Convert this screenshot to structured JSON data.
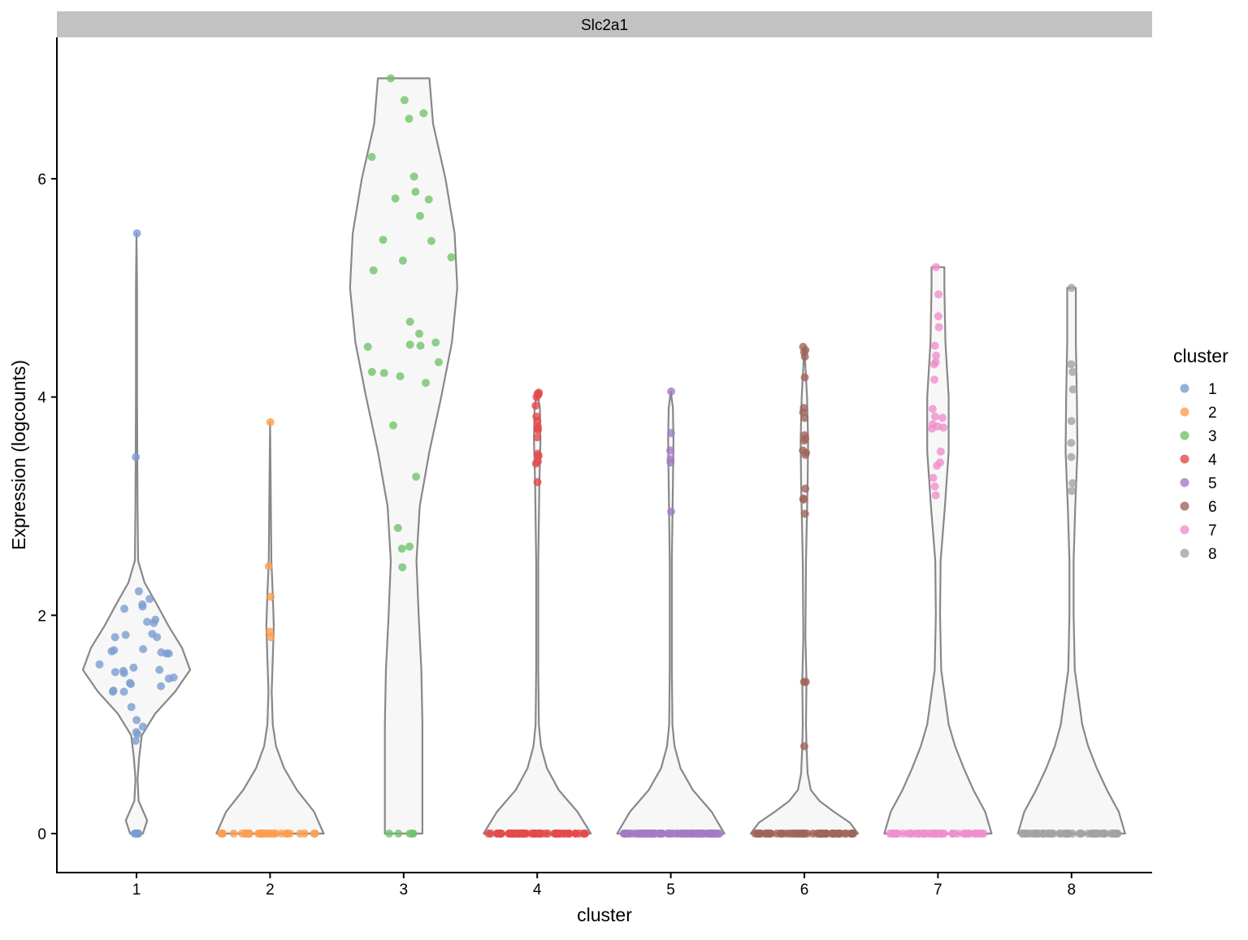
{
  "chart_data": {
    "type": "violin",
    "facet_title": "Slc2a1",
    "xlabel": "cluster",
    "ylabel": "Expression (logcounts)",
    "ylim": [
      -0.35,
      7.3
    ],
    "yticks": [
      0,
      2,
      4,
      6
    ],
    "categories": [
      "1",
      "2",
      "3",
      "4",
      "5",
      "6",
      "7",
      "8"
    ],
    "legend": {
      "title": "cluster",
      "position": "right",
      "entries": [
        "1",
        "2",
        "3",
        "4",
        "5",
        "6",
        "7",
        "8"
      ]
    },
    "colors": {
      "1": "#7b9dd0",
      "2": "#fd9e4f",
      "3": "#70c36b",
      "4": "#e34a4b",
      "5": "#a47bc4",
      "6": "#a0655a",
      "7": "#ef8fcd",
      "8": "#a3a3a3",
      "violin_fill": "#f7f7f7",
      "violin_stroke": "#888888",
      "strip": "#c2c2c2"
    },
    "series": [
      {
        "name": "1",
        "values": [
          5.5,
          3.45,
          2.22,
          2.15,
          2.1,
          2.08,
          2.06,
          1.96,
          1.94,
          1.93,
          1.83,
          1.82,
          1.8,
          1.8,
          1.69,
          1.68,
          1.67,
          1.66,
          1.65,
          1.65,
          1.55,
          1.52,
          1.5,
          1.49,
          1.48,
          1.47,
          1.43,
          1.42,
          1.38,
          1.37,
          1.35,
          1.31,
          1.3,
          1.3,
          1.16,
          1.04,
          0.98,
          0.93,
          0.91,
          0.85,
          0,
          0,
          0,
          0,
          0,
          0,
          0,
          0
        ],
        "violin_width": [
          [
            0,
            0.12
          ],
          [
            0.12,
            0.2
          ],
          [
            0.3,
            0.04
          ],
          [
            0.5,
            0.02
          ],
          [
            0.7,
            0.05
          ],
          [
            0.9,
            0.1
          ],
          [
            1.1,
            0.35
          ],
          [
            1.3,
            0.72
          ],
          [
            1.5,
            1.0
          ],
          [
            1.7,
            0.85
          ],
          [
            1.9,
            0.6
          ],
          [
            2.1,
            0.38
          ],
          [
            2.3,
            0.15
          ],
          [
            2.5,
            0.03
          ],
          [
            3.0,
            0.02
          ],
          [
            3.45,
            0.015
          ],
          [
            4.0,
            0.01
          ],
          [
            5.0,
            0.01
          ],
          [
            5.5,
            0.0
          ]
        ]
      },
      {
        "name": "2",
        "values": [
          3.77,
          2.45,
          2.17,
          1.85,
          1.8,
          0,
          0,
          0,
          0,
          0,
          0,
          0,
          0,
          0,
          0,
          0,
          0,
          0,
          0,
          0,
          0,
          0,
          0,
          0,
          0,
          0,
          0,
          0,
          0,
          0,
          0,
          0,
          0,
          0
        ],
        "violin_width": [
          [
            0,
            1.0
          ],
          [
            0.2,
            0.82
          ],
          [
            0.4,
            0.5
          ],
          [
            0.6,
            0.26
          ],
          [
            0.8,
            0.11
          ],
          [
            1.0,
            0.05
          ],
          [
            1.3,
            0.03
          ],
          [
            1.6,
            0.05
          ],
          [
            1.9,
            0.07
          ],
          [
            2.2,
            0.05
          ],
          [
            2.5,
            0.025
          ],
          [
            3.0,
            0.015
          ],
          [
            3.77,
            0.0
          ]
        ]
      },
      {
        "name": "3",
        "values": [
          6.92,
          6.72,
          6.6,
          6.55,
          6.2,
          6.02,
          5.88,
          5.82,
          5.81,
          5.66,
          5.44,
          5.43,
          5.28,
          5.25,
          5.16,
          4.69,
          4.58,
          4.5,
          4.48,
          4.47,
          4.46,
          4.32,
          4.23,
          4.22,
          4.19,
          4.13,
          3.74,
          3.27,
          2.8,
          2.63,
          2.61,
          2.44,
          0,
          0,
          0,
          0,
          0
        ],
        "violin_width": [
          [
            0,
            0.35
          ],
          [
            0.5,
            0.35
          ],
          [
            1.0,
            0.35
          ],
          [
            1.5,
            0.33
          ],
          [
            2.0,
            0.28
          ],
          [
            2.5,
            0.24
          ],
          [
            3.0,
            0.3
          ],
          [
            3.5,
            0.48
          ],
          [
            4.0,
            0.7
          ],
          [
            4.5,
            0.9
          ],
          [
            5.0,
            1.0
          ],
          [
            5.5,
            0.95
          ],
          [
            6.0,
            0.78
          ],
          [
            6.5,
            0.55
          ],
          [
            6.92,
            0.48
          ]
        ]
      },
      {
        "name": "4",
        "values": [
          4.04,
          4.03,
          4.02,
          4.0,
          3.92,
          3.82,
          3.78,
          3.73,
          3.71,
          3.7,
          3.63,
          3.48,
          3.46,
          3.41,
          3.39,
          3.22,
          0,
          0,
          0,
          0,
          0,
          0,
          0,
          0,
          0,
          0,
          0,
          0,
          0,
          0,
          0,
          0,
          0,
          0,
          0,
          0,
          0,
          0,
          0,
          0,
          0,
          0,
          0,
          0,
          0,
          0,
          0,
          0,
          0,
          0,
          0,
          0,
          0,
          0,
          0,
          0,
          0,
          0,
          0,
          0,
          0,
          0,
          0,
          0,
          0,
          0,
          0,
          0,
          0,
          0,
          0,
          0,
          0,
          0,
          0,
          0,
          0,
          0,
          0,
          0
        ],
        "violin_width": [
          [
            0,
            1.0
          ],
          [
            0.2,
            0.75
          ],
          [
            0.4,
            0.4
          ],
          [
            0.6,
            0.18
          ],
          [
            0.8,
            0.07
          ],
          [
            1.0,
            0.03
          ],
          [
            1.5,
            0.02
          ],
          [
            2.5,
            0.02
          ],
          [
            3.2,
            0.04
          ],
          [
            3.6,
            0.06
          ],
          [
            3.9,
            0.05
          ],
          [
            4.05,
            0.0
          ]
        ]
      },
      {
        "name": "5",
        "values": [
          4.05,
          3.67,
          3.51,
          3.43,
          3.4,
          2.95,
          0,
          0,
          0,
          0,
          0,
          0,
          0,
          0,
          0,
          0,
          0,
          0,
          0,
          0,
          0,
          0,
          0,
          0,
          0,
          0,
          0,
          0,
          0,
          0,
          0,
          0,
          0,
          0,
          0,
          0,
          0,
          0,
          0,
          0,
          0,
          0,
          0,
          0,
          0,
          0,
          0,
          0,
          0,
          0,
          0,
          0,
          0,
          0,
          0,
          0,
          0,
          0,
          0,
          0,
          0,
          0,
          0,
          0,
          0,
          0,
          0,
          0,
          0,
          0,
          0,
          0,
          0,
          0,
          0,
          0,
          0,
          0,
          0,
          0
        ],
        "violin_width": [
          [
            0,
            1.0
          ],
          [
            0.2,
            0.76
          ],
          [
            0.4,
            0.41
          ],
          [
            0.6,
            0.18
          ],
          [
            0.8,
            0.07
          ],
          [
            1.0,
            0.03
          ],
          [
            1.5,
            0.02
          ],
          [
            2.5,
            0.02
          ],
          [
            3.2,
            0.04
          ],
          [
            3.6,
            0.05
          ],
          [
            3.9,
            0.04
          ],
          [
            4.05,
            0.0
          ]
        ]
      },
      {
        "name": "6",
        "values": [
          4.46,
          4.43,
          4.41,
          4.37,
          4.18,
          3.9,
          3.86,
          3.81,
          3.65,
          3.62,
          3.6,
          3.51,
          3.49,
          3.47,
          3.16,
          3.07,
          3.06,
          2.93,
          1.39,
          1.39,
          0.8,
          0,
          0,
          0,
          0,
          0,
          0,
          0,
          0,
          0,
          0,
          0,
          0,
          0,
          0,
          0,
          0,
          0,
          0,
          0,
          0,
          0,
          0,
          0,
          0,
          0,
          0,
          0,
          0,
          0,
          0,
          0,
          0,
          0,
          0,
          0,
          0,
          0,
          0,
          0,
          0,
          0,
          0,
          0,
          0,
          0,
          0,
          0,
          0,
          0,
          0,
          0,
          0,
          0,
          0,
          0,
          0,
          0,
          0,
          0
        ],
        "violin_width": [
          [
            0,
            1.0
          ],
          [
            0.1,
            0.85
          ],
          [
            0.2,
            0.55
          ],
          [
            0.3,
            0.28
          ],
          [
            0.4,
            0.12
          ],
          [
            0.55,
            0.06
          ],
          [
            0.8,
            0.04
          ],
          [
            1.0,
            0.03
          ],
          [
            1.4,
            0.04
          ],
          [
            1.8,
            0.02
          ],
          [
            2.5,
            0.03
          ],
          [
            3.2,
            0.06
          ],
          [
            3.6,
            0.07
          ],
          [
            4.0,
            0.05
          ],
          [
            4.46,
            0.0
          ]
        ]
      },
      {
        "name": "7",
        "values": [
          5.19,
          4.94,
          4.74,
          4.64,
          4.47,
          4.38,
          4.32,
          4.3,
          4.16,
          3.89,
          3.82,
          3.81,
          3.75,
          3.73,
          3.72,
          3.71,
          3.5,
          3.4,
          3.37,
          3.26,
          3.18,
          3.1,
          0,
          0,
          0,
          0,
          0,
          0,
          0,
          0,
          0,
          0,
          0,
          0,
          0,
          0,
          0,
          0,
          0,
          0,
          0,
          0,
          0,
          0,
          0,
          0,
          0,
          0,
          0,
          0,
          0,
          0,
          0,
          0,
          0,
          0,
          0,
          0,
          0,
          0,
          0,
          0,
          0,
          0,
          0,
          0,
          0,
          0,
          0,
          0
        ],
        "violin_width": [
          [
            0,
            1.0
          ],
          [
            0.2,
            0.88
          ],
          [
            0.4,
            0.66
          ],
          [
            0.6,
            0.48
          ],
          [
            0.8,
            0.32
          ],
          [
            1.0,
            0.2
          ],
          [
            1.5,
            0.06
          ],
          [
            2.0,
            0.04
          ],
          [
            2.5,
            0.05
          ],
          [
            3.0,
            0.13
          ],
          [
            3.5,
            0.2
          ],
          [
            4.0,
            0.2
          ],
          [
            4.5,
            0.14
          ],
          [
            5.0,
            0.12
          ],
          [
            5.19,
            0.12
          ]
        ]
      },
      {
        "name": "8",
        "values": [
          5.0,
          4.3,
          4.23,
          4.07,
          3.78,
          3.58,
          3.45,
          3.21,
          3.14,
          0,
          0,
          0,
          0,
          0,
          0,
          0,
          0,
          0,
          0,
          0,
          0,
          0,
          0,
          0,
          0,
          0,
          0,
          0,
          0,
          0,
          0,
          0,
          0,
          0,
          0,
          0,
          0,
          0,
          0,
          0,
          0,
          0,
          0,
          0,
          0,
          0,
          0,
          0,
          0,
          0,
          0,
          0,
          0,
          0,
          0,
          0,
          0,
          0,
          0,
          0
        ],
        "violin_width": [
          [
            0,
            1.0
          ],
          [
            0.2,
            0.88
          ],
          [
            0.4,
            0.66
          ],
          [
            0.6,
            0.47
          ],
          [
            0.8,
            0.31
          ],
          [
            1.0,
            0.2
          ],
          [
            1.5,
            0.06
          ],
          [
            2.0,
            0.04
          ],
          [
            2.5,
            0.04
          ],
          [
            3.0,
            0.07
          ],
          [
            3.5,
            0.11
          ],
          [
            4.0,
            0.1
          ],
          [
            4.5,
            0.08
          ],
          [
            5.0,
            0.08
          ]
        ]
      }
    ]
  }
}
